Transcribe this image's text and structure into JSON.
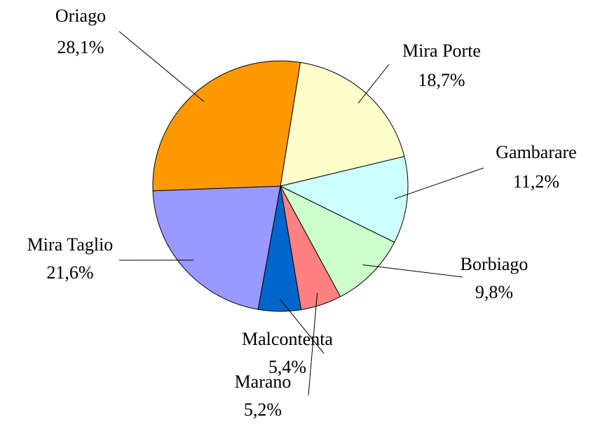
{
  "chart_data": {
    "type": "pie",
    "categories": [
      "Mira Porte",
      "Gambarare",
      "Borbiago",
      "Marano",
      "Malcontenta",
      "Mira Taglio",
      "Oriago"
    ],
    "values": [
      18.7,
      11.2,
      9.8,
      5.2,
      5.4,
      21.6,
      28.1
    ],
    "value_labels": [
      "18,7%",
      "11,2%",
      "9,8%",
      "5,2%",
      "5,4%",
      "21,6%",
      "28,1%"
    ],
    "colors": [
      "#ffffcc",
      "#ccffff",
      "#ccffcc",
      "#ff8080",
      "#0066cc",
      "#9999ff",
      "#ff9900"
    ]
  }
}
